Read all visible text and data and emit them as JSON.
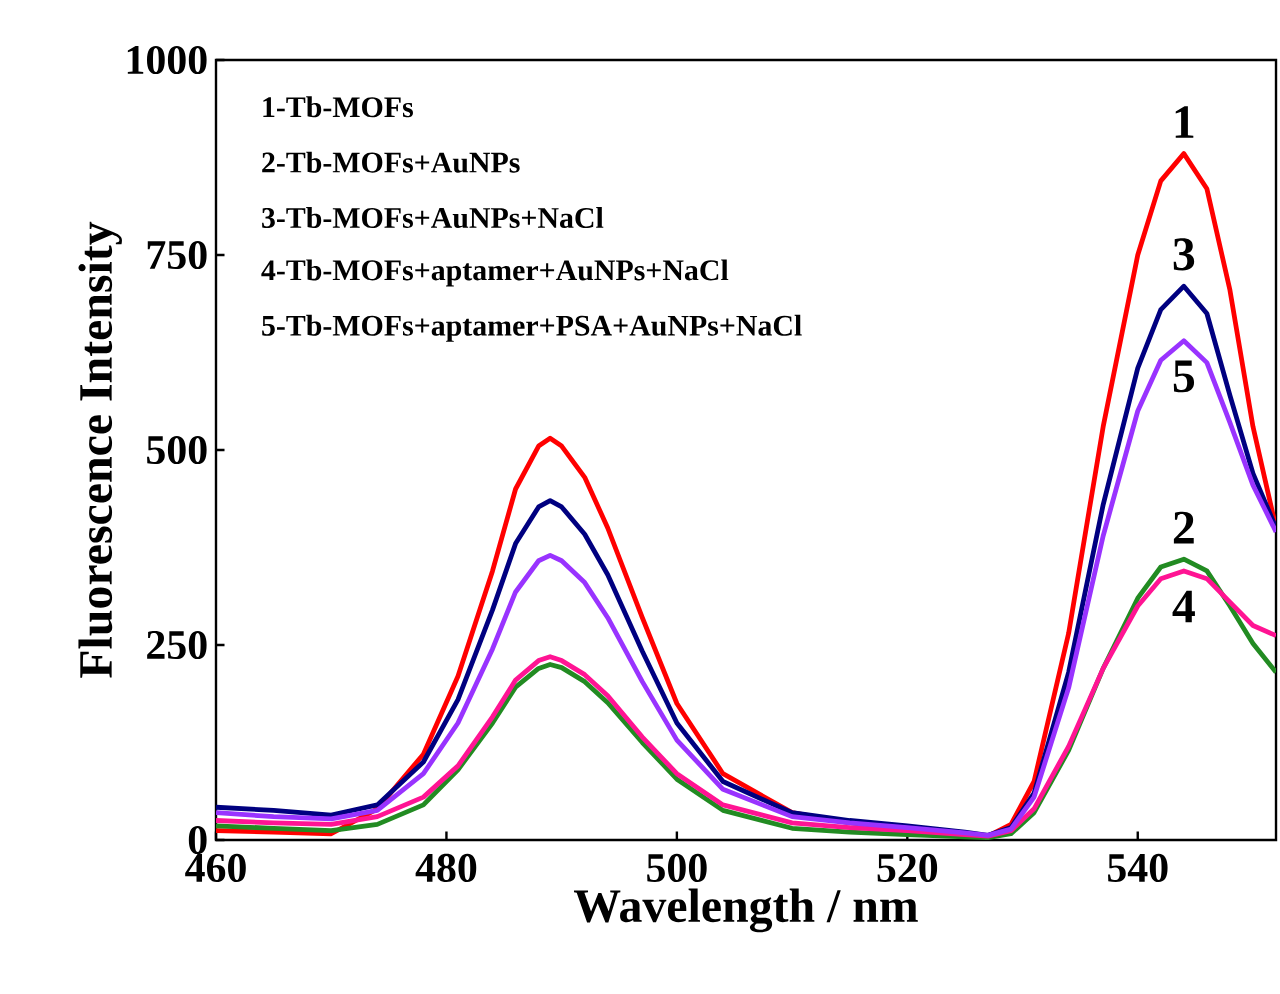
{
  "chart_data": {
    "type": "line",
    "xlabel": "Wavelength / nm",
    "ylabel": "Fluorescence Intensity",
    "x": [
      460,
      465,
      470,
      474,
      478,
      481,
      484,
      486,
      488,
      489,
      490,
      492,
      494,
      497,
      500,
      504,
      510,
      515,
      520,
      525,
      527,
      529,
      531,
      534,
      537,
      540,
      542,
      544,
      546,
      548,
      550,
      552
    ],
    "xlim": [
      460,
      552
    ],
    "xticks": [
      460,
      480,
      500,
      520,
      540
    ],
    "ylim": [
      0,
      1000
    ],
    "yticks": [
      0,
      250,
      500,
      750,
      1000
    ],
    "series": [
      {
        "name": "1",
        "color": "#ff0000",
        "values": [
          12,
          10,
          8,
          40,
          110,
          210,
          345,
          450,
          505,
          515,
          505,
          465,
          400,
          285,
          175,
          85,
          35,
          22,
          15,
          8,
          5,
          20,
          75,
          265,
          530,
          750,
          845,
          880,
          835,
          705,
          530,
          400
        ]
      },
      {
        "name": "2",
        "color": "#228b22",
        "values": [
          18,
          15,
          12,
          20,
          45,
          90,
          150,
          196,
          220,
          225,
          221,
          203,
          176,
          125,
          78,
          38,
          15,
          10,
          7,
          4,
          3,
          8,
          35,
          115,
          220,
          310,
          350,
          360,
          345,
          300,
          252,
          215
        ]
      },
      {
        "name": "3",
        "color": "#000080",
        "values": [
          42,
          38,
          32,
          45,
          100,
          180,
          295,
          380,
          427,
          435,
          427,
          392,
          340,
          242,
          150,
          75,
          35,
          25,
          18,
          10,
          6,
          16,
          60,
          215,
          430,
          605,
          680,
          710,
          675,
          570,
          470,
          400
        ]
      },
      {
        "name": "4",
        "color": "#ff1493",
        "values": [
          25,
          22,
          20,
          30,
          55,
          95,
          158,
          205,
          230,
          235,
          230,
          212,
          185,
          132,
          85,
          45,
          22,
          16,
          12,
          7,
          5,
          12,
          40,
          120,
          220,
          300,
          335,
          345,
          335,
          305,
          275,
          262
        ]
      },
      {
        "name": "5",
        "color": "#9933ff",
        "values": [
          35,
          30,
          27,
          38,
          85,
          150,
          245,
          318,
          358,
          365,
          358,
          330,
          285,
          203,
          128,
          65,
          30,
          22,
          16,
          9,
          6,
          14,
          55,
          195,
          390,
          550,
          615,
          640,
          612,
          535,
          455,
          395
        ]
      }
    ],
    "annotations": [
      "1-Tb-MOFs",
      "2-Tb-MOFs+AuNPs",
      "3-Tb-MOFs+AuNPs+NaCl",
      "4-Tb-MOFs+aptamer+AuNPs+NaCl",
      "5-Tb-MOFs+aptamer+PSA+AuNPs+NaCl"
    ],
    "grid": false,
    "marker": "none",
    "line_style": "solid"
  }
}
